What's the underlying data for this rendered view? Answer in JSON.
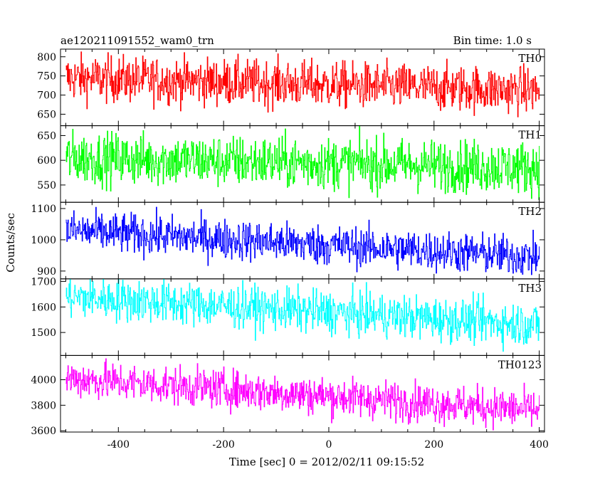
{
  "chart_data": {
    "type": "line",
    "title_left": "ae120211091552_wam0_trn",
    "title_right": "Bin time: 1.0 s",
    "xlabel": "Time [sec] 0 = 2012/02/11 09:15:52",
    "ylabel": "Counts/sec",
    "xlim": [
      -510,
      410
    ],
    "x_ticks": [
      -400,
      -200,
      0,
      200,
      400
    ],
    "x_start": -500,
    "x_end": 400,
    "x_step": 1,
    "legend_placement": "top-right of each panel",
    "series": [
      {
        "name": "TH0",
        "color": "#ff0000",
        "ylim": [
          620,
          820
        ],
        "y_ticks": [
          650,
          700,
          750,
          800
        ],
        "mean_start": 745,
        "mean_end": 712,
        "noise": 30
      },
      {
        "name": "TH1",
        "color": "#00ff00",
        "ylim": [
          515,
          670
        ],
        "y_ticks": [
          550,
          600,
          650
        ],
        "mean_start": 605,
        "mean_end": 585,
        "noise": 26
      },
      {
        "name": "TH2",
        "color": "#0000ff",
        "ylim": [
          875,
          1120
        ],
        "y_ticks": [
          900,
          1000,
          1100
        ],
        "mean_start": 1030,
        "mean_end": 945,
        "noise": 32
      },
      {
        "name": "TH3",
        "color": "#00ffff",
        "ylim": [
          1410,
          1710
        ],
        "y_ticks": [
          1500,
          1600,
          1700
        ],
        "mean_start": 1640,
        "mean_end": 1530,
        "noise": 42
      },
      {
        "name": "TH0123",
        "color": "#ff00ff",
        "ylim": [
          3590,
          4190
        ],
        "y_ticks": [
          3600,
          3800,
          4000
        ],
        "mean_start": 4010,
        "mean_end": 3760,
        "noise": 75
      }
    ]
  }
}
